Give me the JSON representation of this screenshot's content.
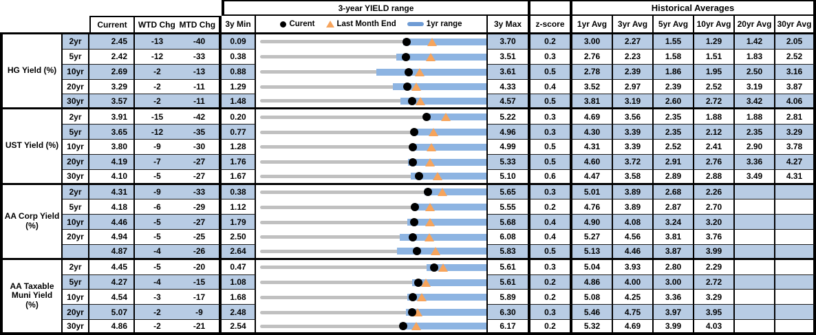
{
  "header": {
    "range_title": "3-year YIELD range",
    "averages_title": "Historical Averages",
    "current": "Current",
    "wtd": "WTD Chg",
    "mtd": "MTD Chg",
    "min": "3y Min",
    "max": "3y Max",
    "z": "z-score",
    "avgs": [
      "1yr Avg",
      "3yr Avg",
      "5yr Avg",
      "10yr Avg",
      "20yr Avg",
      "30yr Avg"
    ]
  },
  "legend": {
    "current": "Curent",
    "last_month_end": "Last Month End",
    "range_1yr": "1yr range"
  },
  "colors": {
    "stripe": "#B8CCE4",
    "bar_1yr": "#8DB4E2",
    "track": "#C0C0C0",
    "dot": "#000000",
    "triangle": "#F6A45C"
  },
  "chart_data": {
    "type": "range-dot-plot",
    "unit": "percent yield, changes in bp",
    "legend_position": "top of chart column",
    "sections": [
      {
        "label": "HG Yield (%)",
        "rows": [
          {
            "tenor": "2yr",
            "current": "2.45",
            "wtd": "-13",
            "mtd": "-40",
            "min": "0.09",
            "max": "3.70",
            "z": "0.2",
            "avgs": [
              "3.00",
              "2.27",
              "1.55",
              "1.29",
              "1.42",
              "2.05"
            ],
            "last_month_end": 2.85,
            "bar_1yr_lo": 2.4,
            "bar_1yr_hi": 3.7
          },
          {
            "tenor": "5yr",
            "current": "2.42",
            "wtd": "-12",
            "mtd": "-33",
            "min": "0.38",
            "max": "3.51",
            "z": "0.3",
            "avgs": [
              "2.76",
              "2.23",
              "1.58",
              "1.51",
              "1.83",
              "2.52"
            ],
            "last_month_end": 2.75,
            "bar_1yr_lo": 2.29,
            "bar_1yr_hi": 3.51
          },
          {
            "tenor": "10yr",
            "current": "2.69",
            "wtd": "-2",
            "mtd": "-13",
            "min": "0.88",
            "max": "3.61",
            "z": "0.5",
            "avgs": [
              "2.78",
              "2.39",
              "1.86",
              "1.95",
              "2.50",
              "3.16"
            ],
            "last_month_end": 2.82,
            "bar_1yr_lo": 2.31,
            "bar_1yr_hi": 3.61
          },
          {
            "tenor": "20yr",
            "current": "3.29",
            "wtd": "-2",
            "mtd": "-11",
            "min": "1.29",
            "max": "4.33",
            "z": "0.4",
            "avgs": [
              "3.52",
              "2.97",
              "2.39",
              "2.52",
              "3.19",
              "3.87"
            ],
            "last_month_end": 3.4,
            "bar_1yr_lo": 3.1,
            "bar_1yr_hi": 4.33
          },
          {
            "tenor": "30yr",
            "current": "3.57",
            "wtd": "-2",
            "mtd": "-11",
            "min": "1.48",
            "max": "4.57",
            "z": "0.5",
            "avgs": [
              "3.81",
              "3.19",
              "2.60",
              "2.72",
              "3.42",
              "4.06"
            ],
            "last_month_end": 3.68,
            "bar_1yr_lo": 3.42,
            "bar_1yr_hi": 4.57
          }
        ]
      },
      {
        "label": "UST Yield (%)",
        "rows": [
          {
            "tenor": "2yr",
            "current": "3.91",
            "wtd": "-15",
            "mtd": "-42",
            "min": "0.20",
            "max": "5.22",
            "z": "0.3",
            "avgs": [
              "4.69",
              "3.56",
              "2.35",
              "1.88",
              "1.88",
              "2.81"
            ],
            "last_month_end": 4.33,
            "bar_1yr_lo": 3.85,
            "bar_1yr_hi": 5.22
          },
          {
            "tenor": "5yr",
            "current": "3.65",
            "wtd": "-12",
            "mtd": "-35",
            "min": "0.77",
            "max": "4.96",
            "z": "0.3",
            "avgs": [
              "4.30",
              "3.39",
              "2.35",
              "2.12",
              "2.35",
              "3.29"
            ],
            "last_month_end": 4.0,
            "bar_1yr_lo": 3.62,
            "bar_1yr_hi": 4.96
          },
          {
            "tenor": "10yr",
            "current": "3.80",
            "wtd": "-9",
            "mtd": "-30",
            "min": "1.28",
            "max": "4.99",
            "z": "0.5",
            "avgs": [
              "4.31",
              "3.39",
              "2.52",
              "2.41",
              "2.90",
              "3.78"
            ],
            "last_month_end": 4.1,
            "bar_1yr_lo": 3.77,
            "bar_1yr_hi": 4.99
          },
          {
            "tenor": "20yr",
            "current": "4.19",
            "wtd": "-7",
            "mtd": "-27",
            "min": "1.76",
            "max": "5.33",
            "z": "0.5",
            "avgs": [
              "4.60",
              "3.72",
              "2.91",
              "2.76",
              "3.36",
              "4.27"
            ],
            "last_month_end": 4.46,
            "bar_1yr_lo": 4.11,
            "bar_1yr_hi": 5.33
          },
          {
            "tenor": "30yr",
            "current": "4.10",
            "wtd": "-5",
            "mtd": "-27",
            "min": "1.67",
            "max": "5.10",
            "z": "0.6",
            "avgs": [
              "4.47",
              "3.58",
              "2.89",
              "2.88",
              "3.49",
              "4.31"
            ],
            "last_month_end": 4.37,
            "bar_1yr_lo": 3.97,
            "bar_1yr_hi": 5.1
          }
        ]
      },
      {
        "label": "AA Corp Yield (%)",
        "rows": [
          {
            "tenor": "2yr",
            "current": "4.31",
            "wtd": "-9",
            "mtd": "-33",
            "min": "0.38",
            "max": "5.65",
            "z": "0.3",
            "avgs": [
              "5.01",
              "3.89",
              "2.68",
              "2.26",
              "",
              ""
            ],
            "last_month_end": 4.64,
            "bar_1yr_lo": 4.23,
            "bar_1yr_hi": 5.65
          },
          {
            "tenor": "5yr",
            "current": "4.18",
            "wtd": "-6",
            "mtd": "-29",
            "min": "1.12",
            "max": "5.55",
            "z": "0.2",
            "avgs": [
              "4.76",
              "3.89",
              "2.87",
              "2.70",
              "",
              ""
            ],
            "last_month_end": 4.47,
            "bar_1yr_lo": 4.12,
            "bar_1yr_hi": 5.55
          },
          {
            "tenor": "10yr",
            "current": "4.46",
            "wtd": "-5",
            "mtd": "-27",
            "min": "1.79",
            "max": "5.68",
            "z": "0.4",
            "avgs": [
              "4.90",
              "4.08",
              "3.24",
              "3.20",
              "",
              ""
            ],
            "last_month_end": 4.73,
            "bar_1yr_lo": 4.34,
            "bar_1yr_hi": 5.68
          },
          {
            "tenor": "20yr",
            "current": "4.94",
            "wtd": "-5",
            "mtd": "-25",
            "min": "2.50",
            "max": "6.08",
            "z": "0.4",
            "avgs": [
              "5.27",
              "4.56",
              "3.81",
              "3.76",
              "",
              ""
            ],
            "last_month_end": 5.19,
            "bar_1yr_lo": 4.73,
            "bar_1yr_hi": 6.08
          },
          {
            "tenor": "",
            "current": "4.87",
            "wtd": "-4",
            "mtd": "-26",
            "min": "2.64",
            "max": "5.83",
            "z": "0.5",
            "avgs": [
              "5.13",
              "4.46",
              "3.87",
              "3.99",
              "",
              ""
            ],
            "last_month_end": 5.13,
            "bar_1yr_lo": 4.59,
            "bar_1yr_hi": 5.83
          }
        ]
      },
      {
        "label": "AA Taxable Muni Yield (%)",
        "rows": [
          {
            "tenor": "2yr",
            "current": "4.45",
            "wtd": "-5",
            "mtd": "-20",
            "min": "0.47",
            "max": "5.61",
            "z": "0.3",
            "avgs": [
              "5.04",
              "3.93",
              "2.80",
              "2.29",
              "",
              ""
            ],
            "last_month_end": 4.65,
            "bar_1yr_lo": 4.28,
            "bar_1yr_hi": 5.61
          },
          {
            "tenor": "5yr",
            "current": "4.27",
            "wtd": "-4",
            "mtd": "-15",
            "min": "1.08",
            "max": "5.61",
            "z": "0.2",
            "avgs": [
              "4.86",
              "4.00",
              "3.00",
              "2.72",
              "",
              ""
            ],
            "last_month_end": 4.42,
            "bar_1yr_lo": 4.15,
            "bar_1yr_hi": 5.61
          },
          {
            "tenor": "10yr",
            "current": "4.54",
            "wtd": "-3",
            "mtd": "-17",
            "min": "1.68",
            "max": "5.89",
            "z": "0.2",
            "avgs": [
              "5.08",
              "4.25",
              "3.36",
              "3.29",
              "",
              ""
            ],
            "last_month_end": 4.71,
            "bar_1yr_lo": 4.44,
            "bar_1yr_hi": 5.89
          },
          {
            "tenor": "20yr",
            "current": "5.07",
            "wtd": "-2",
            "mtd": "-9",
            "min": "2.48",
            "max": "6.30",
            "z": "0.3",
            "avgs": [
              "5.46",
              "4.75",
              "3.97",
              "3.95",
              "",
              ""
            ],
            "last_month_end": 5.16,
            "bar_1yr_lo": 4.97,
            "bar_1yr_hi": 6.3
          },
          {
            "tenor": "30yr",
            "current": "4.86",
            "wtd": "-2",
            "mtd": "-21",
            "min": "2.54",
            "max": "6.17",
            "z": "0.2",
            "avgs": [
              "5.32",
              "4.69",
              "3.99",
              "4.03",
              "",
              ""
            ],
            "last_month_end": 5.07,
            "bar_1yr_lo": 4.8,
            "bar_1yr_hi": 6.17
          }
        ]
      }
    ]
  }
}
